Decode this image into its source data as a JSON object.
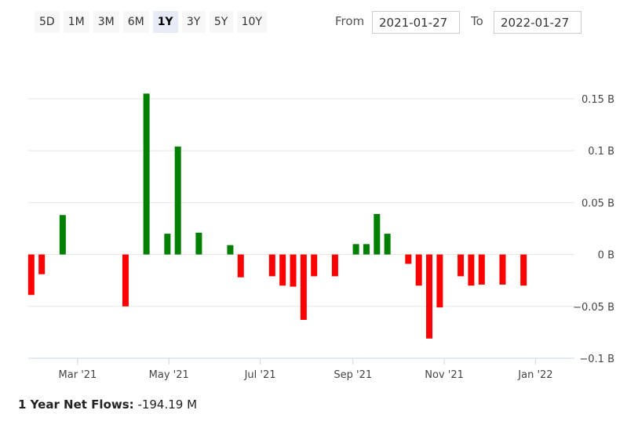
{
  "range_selector": {
    "buttons": [
      "5D",
      "1M",
      "3M",
      "6M",
      "1Y",
      "3Y",
      "5Y",
      "10Y"
    ],
    "active": "1Y"
  },
  "date_range": {
    "from_label": "From",
    "from_value": "2021-01-27",
    "to_label": "To",
    "to_value": "2022-01-27"
  },
  "colors": {
    "positive": "#008000",
    "negative": "#ff0000",
    "grid": "#e6e6e6"
  },
  "summary": {
    "label": "1 Year Net Flows:",
    "value": "-194.19 M"
  },
  "chart_data": {
    "type": "bar",
    "title": "",
    "xlabel": "",
    "ylabel": "",
    "y_unit": "B",
    "ylim": [
      -0.1,
      0.15
    ],
    "x_range": [
      "2021-01-27",
      "2022-01-27"
    ],
    "y_ticks": [
      {
        "value": 0.15,
        "label": "0.15 B"
      },
      {
        "value": 0.1,
        "label": "0.1 B"
      },
      {
        "value": 0.05,
        "label": "0.05 B"
      },
      {
        "value": 0,
        "label": "0 B"
      },
      {
        "value": -0.05,
        "label": "−0.05 B"
      },
      {
        "value": -0.1,
        "label": "−0.1 B"
      }
    ],
    "x_ticks": [
      {
        "date": "2021-03-01",
        "label": "Mar '21"
      },
      {
        "date": "2021-05-01",
        "label": "May '21"
      },
      {
        "date": "2021-07-01",
        "label": "Jul '21"
      },
      {
        "date": "2021-09-01",
        "label": "Sep '21"
      },
      {
        "date": "2021-11-01",
        "label": "Nov '21"
      },
      {
        "date": "2022-01-01",
        "label": "Jan '22"
      }
    ],
    "grid": true,
    "legend": false,
    "bars": [
      {
        "date": "2021-01-29",
        "value": -0.039
      },
      {
        "date": "2021-02-05",
        "value": -0.019
      },
      {
        "date": "2021-02-19",
        "value": 0.038
      },
      {
        "date": "2021-04-02",
        "value": -0.05
      },
      {
        "date": "2021-04-16",
        "value": 0.155
      },
      {
        "date": "2021-04-30",
        "value": 0.02
      },
      {
        "date": "2021-05-07",
        "value": 0.104
      },
      {
        "date": "2021-05-21",
        "value": 0.021
      },
      {
        "date": "2021-06-11",
        "value": 0.009
      },
      {
        "date": "2021-06-18",
        "value": -0.022
      },
      {
        "date": "2021-07-09",
        "value": -0.021
      },
      {
        "date": "2021-07-16",
        "value": -0.03
      },
      {
        "date": "2021-07-23",
        "value": -0.031
      },
      {
        "date": "2021-07-30",
        "value": -0.063
      },
      {
        "date": "2021-08-06",
        "value": -0.021
      },
      {
        "date": "2021-08-20",
        "value": -0.021
      },
      {
        "date": "2021-09-03",
        "value": 0.01
      },
      {
        "date": "2021-09-10",
        "value": 0.01
      },
      {
        "date": "2021-09-17",
        "value": 0.039
      },
      {
        "date": "2021-09-24",
        "value": 0.02
      },
      {
        "date": "2021-10-08",
        "value": -0.009
      },
      {
        "date": "2021-10-15",
        "value": -0.03
      },
      {
        "date": "2021-10-22",
        "value": -0.081
      },
      {
        "date": "2021-10-29",
        "value": -0.051
      },
      {
        "date": "2021-11-12",
        "value": -0.021
      },
      {
        "date": "2021-11-19",
        "value": -0.03
      },
      {
        "date": "2021-11-26",
        "value": -0.029
      },
      {
        "date": "2021-12-10",
        "value": -0.029
      },
      {
        "date": "2021-12-24",
        "value": -0.03
      }
    ]
  }
}
